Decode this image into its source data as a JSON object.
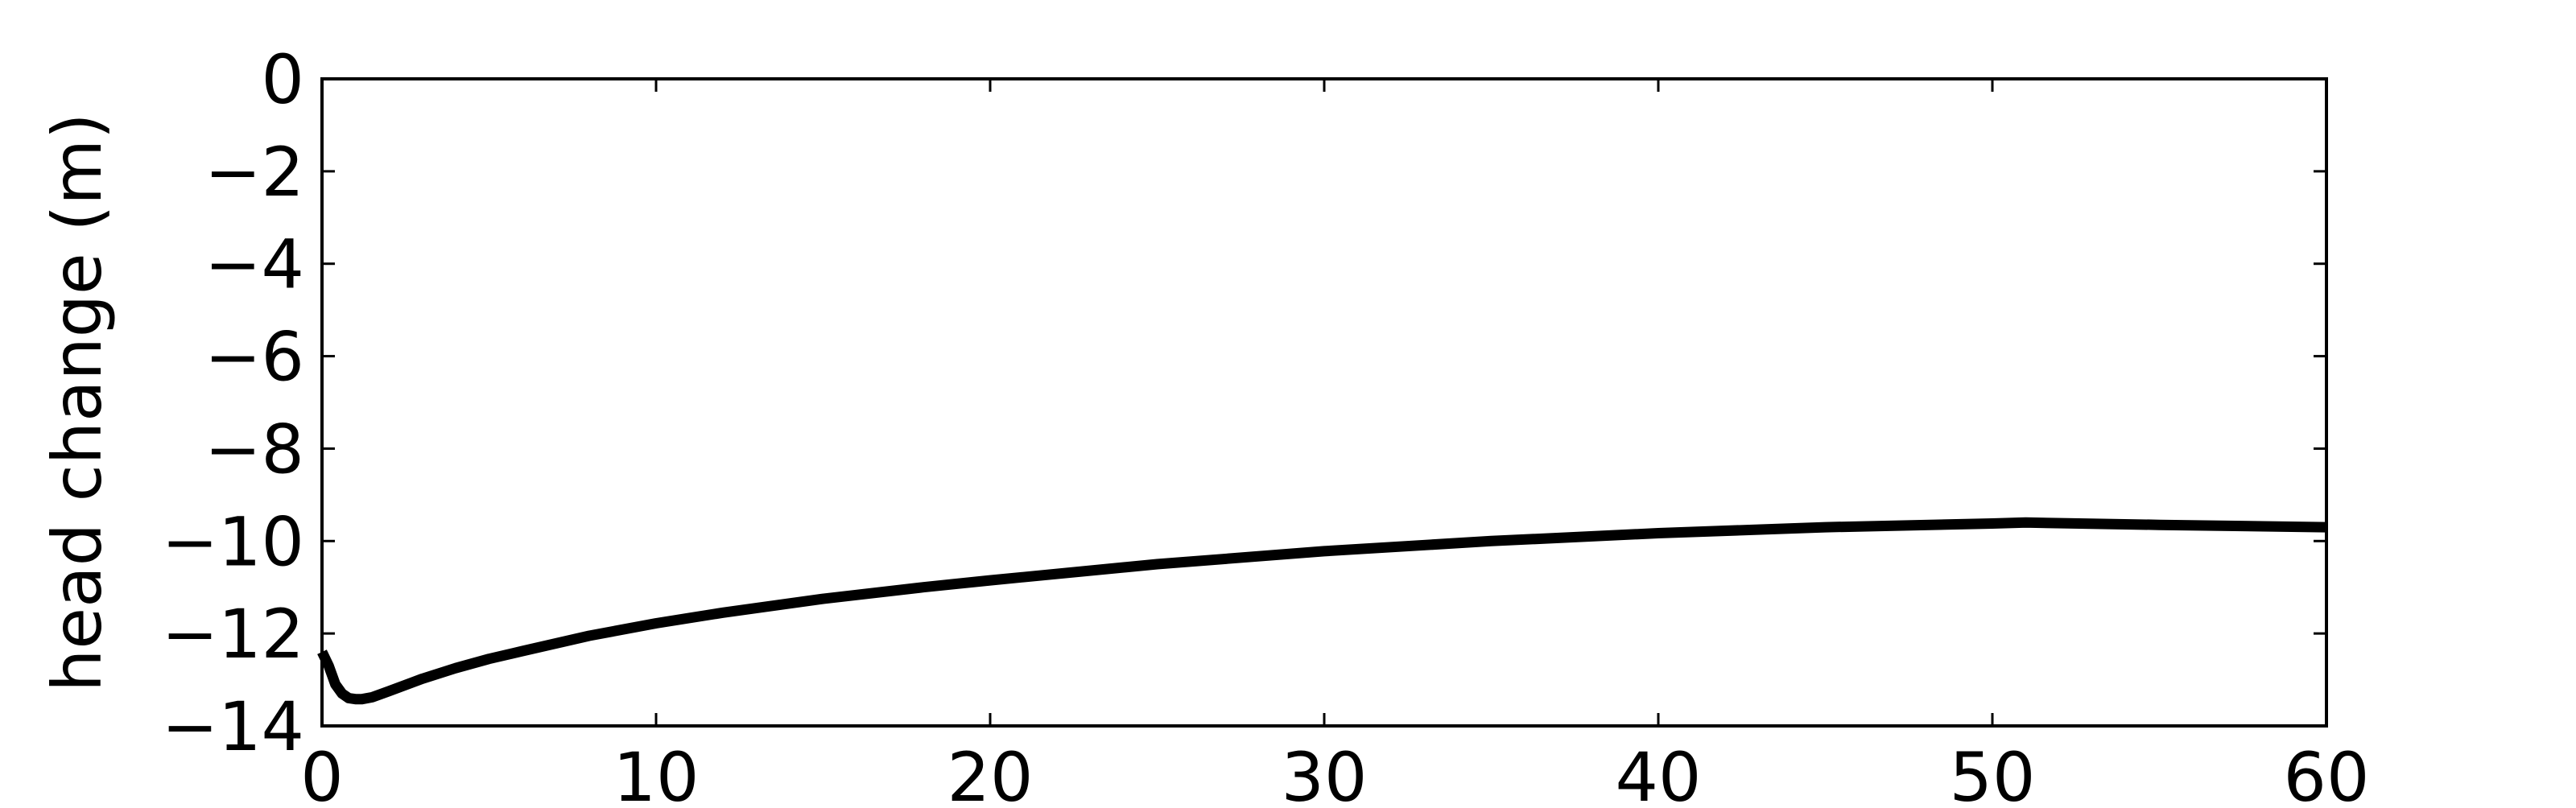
{
  "chart_data": {
    "type": "line",
    "title": "",
    "xlabel": "",
    "ylabel": "head change (m)",
    "xlim": [
      0,
      60
    ],
    "ylim": [
      -14,
      0
    ],
    "xticks": [
      0,
      10,
      20,
      30,
      40,
      50,
      60
    ],
    "xtick_labels": [
      "0",
      "10",
      "20",
      "30",
      "40",
      "50",
      "60"
    ],
    "yticks": [
      0,
      -2,
      -4,
      -6,
      -8,
      -10,
      -12,
      -14
    ],
    "ytick_labels": [
      "0",
      "−2",
      "−4",
      "−6",
      "−8",
      "−10",
      "−12",
      "−14"
    ],
    "grid": false,
    "legend": "none",
    "series": [
      {
        "color": "#000000",
        "x": [
          0,
          0.2,
          0.4,
          0.6,
          0.8,
          1.0,
          1.2,
          1.5,
          2,
          3,
          4,
          5,
          6,
          8,
          10,
          12,
          15,
          18,
          20,
          25,
          30,
          35,
          40,
          45,
          50,
          51,
          55,
          60
        ],
        "y": [
          -12.4,
          -12.7,
          -13.1,
          -13.3,
          -13.4,
          -13.42,
          -13.42,
          -13.38,
          -13.25,
          -12.98,
          -12.75,
          -12.55,
          -12.38,
          -12.05,
          -11.78,
          -11.55,
          -11.25,
          -11.0,
          -10.85,
          -10.5,
          -10.22,
          -10.0,
          -9.83,
          -9.7,
          -9.62,
          -9.6,
          -9.65,
          -9.7
        ]
      }
    ]
  }
}
